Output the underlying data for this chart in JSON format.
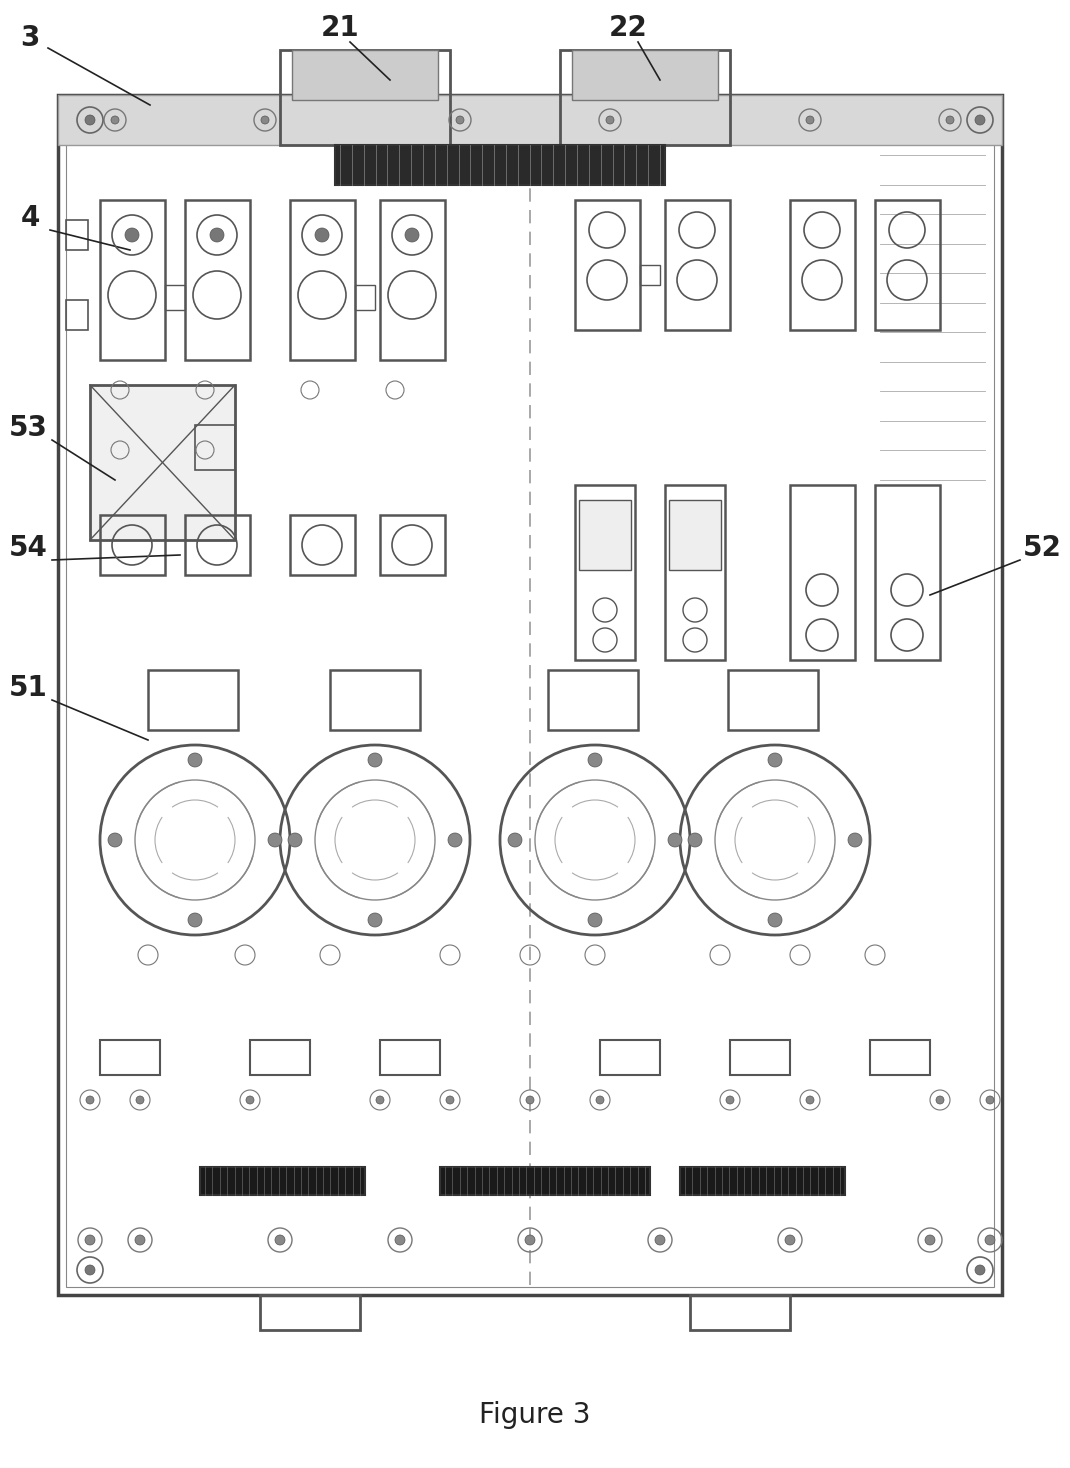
{
  "fig_width": 10.7,
  "fig_height": 14.68,
  "dpi": 100,
  "bg_color": "#ffffff",
  "lc": "#555555",
  "dc": "#222222",
  "title": "Figure 3",
  "title_fontsize": 20,
  "label_fontsize": 20
}
